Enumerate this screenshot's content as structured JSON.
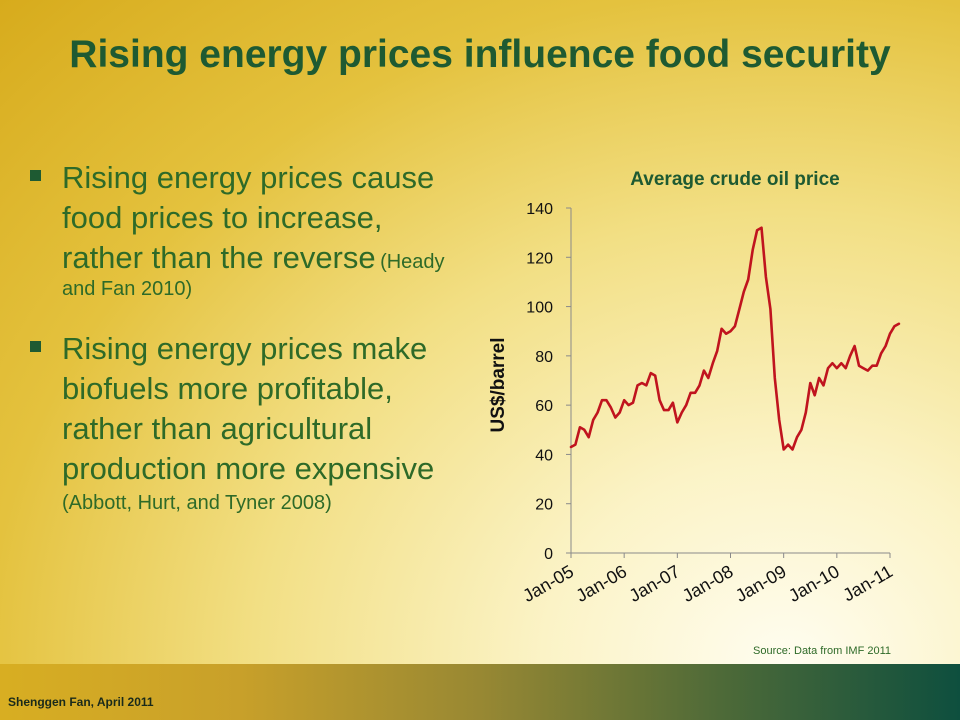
{
  "slide": {
    "title": "Rising energy prices influence food security",
    "bullets": [
      {
        "text": "Rising energy prices cause food prices to increase, rather than the reverse",
        "citation": "(Heady and Fan 2010)"
      },
      {
        "text": "Rising energy prices make biofuels more profitable, rather than agricultural production more expensive",
        "citation": "(Abbott, Hurt, and Tyner 2008)"
      }
    ],
    "footer": "Shenggen Fan, April 2011",
    "colors": {
      "title": "#1e5a32",
      "line": "#c0141e",
      "text": "#2e6a28"
    }
  },
  "chart_data": {
    "type": "line",
    "title": "Average crude oil price",
    "ylabel": "US$/barrel",
    "xlabel": "",
    "ylim": [
      0,
      140
    ],
    "yticks": [
      0,
      20,
      40,
      60,
      80,
      100,
      120,
      140
    ],
    "xticks": [
      "Jan-05",
      "Jan-06",
      "Jan-07",
      "Jan-08",
      "Jan-09",
      "Jan-10",
      "Jan-11"
    ],
    "source": "Source: Data from IMF 2011",
    "grid": false,
    "series": [
      {
        "color": "#c0141e",
        "x_start": "Jan-05",
        "frequency": "monthly",
        "values": [
          43,
          44,
          51,
          50,
          47,
          54,
          57,
          62,
          62,
          59,
          55,
          57,
          62,
          60,
          61,
          68,
          69,
          68,
          73,
          72,
          62,
          58,
          58,
          61,
          53,
          57,
          60,
          65,
          65,
          68,
          74,
          71,
          77,
          82,
          91,
          89,
          90,
          92,
          99,
          106,
          111,
          123,
          131,
          132,
          112,
          99,
          71,
          54,
          42,
          44,
          42,
          47,
          50,
          57,
          69,
          64,
          71,
          68,
          75,
          77,
          75,
          77,
          75,
          80,
          84,
          76,
          75,
          74,
          76,
          76,
          81,
          84,
          89,
          92,
          93
        ]
      }
    ]
  }
}
